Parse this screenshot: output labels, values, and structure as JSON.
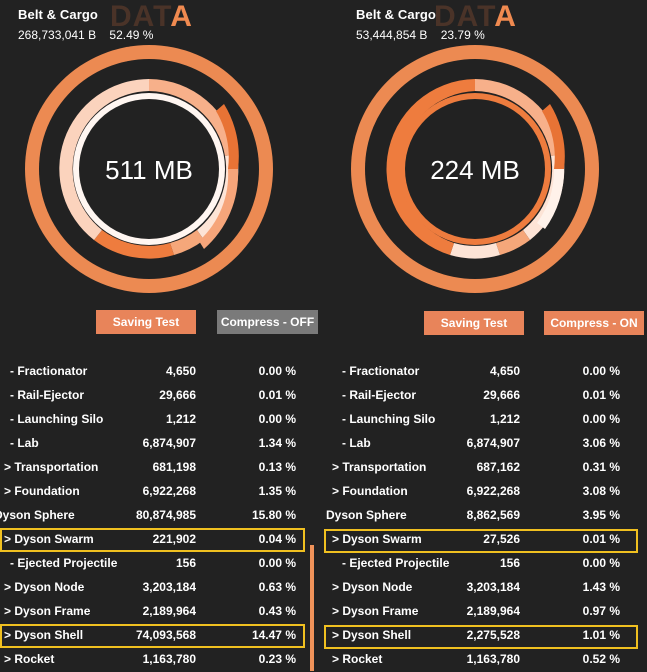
{
  "colors": {
    "accent": "#f0935a",
    "highlight": "#f0c020",
    "background": "#222222"
  },
  "left": {
    "title": "Belt & Cargo",
    "bytes": "268,733,041 B",
    "percent": "52.49 %",
    "watermark_main": "DAT",
    "watermark_accent": "A",
    "total": "511 MB",
    "save_label": "Saving Test",
    "compress_label": "Compress - OFF",
    "rows": [
      {
        "name": "- Fractionator",
        "value": "4,650",
        "pct": "0.00 %"
      },
      {
        "name": "- Rail-Ejector",
        "value": "29,666",
        "pct": "0.01 %"
      },
      {
        "name": "- Launching Silo",
        "value": "1,212",
        "pct": "0.00 %"
      },
      {
        "name": "- Lab",
        "value": "6,874,907",
        "pct": "1.34 %"
      },
      {
        "name": "> Transportation",
        "value": "681,198",
        "pct": "0.13 %"
      },
      {
        "name": "> Foundation",
        "value": "6,922,268",
        "pct": "1.35 %"
      },
      {
        "name": "Dyson Sphere",
        "value": "80,874,985",
        "pct": "15.80 %"
      },
      {
        "name": "> Dyson Swarm",
        "value": "221,902",
        "pct": "0.04 %"
      },
      {
        "name": "- Ejected Projectile",
        "value": "156",
        "pct": "0.00 %"
      },
      {
        "name": "> Dyson Node",
        "value": "3,203,184",
        "pct": "0.63 %"
      },
      {
        "name": "> Dyson Frame",
        "value": "2,189,964",
        "pct": "0.43 %"
      },
      {
        "name": "> Dyson Shell",
        "value": "74,093,568",
        "pct": "14.47 %"
      },
      {
        "name": "> Rocket",
        "value": "1,163,780",
        "pct": "0.23 %"
      }
    ]
  },
  "right": {
    "title": "Belt & Cargo",
    "bytes": "53,444,854 B",
    "percent": "23.79 %",
    "watermark_main": "DAT",
    "watermark_accent": "A",
    "total": "224 MB",
    "save_label": "Saving Test",
    "compress_label": "Compress - ON",
    "rows": [
      {
        "name": "- Fractionator",
        "value": "4,650",
        "pct": "0.00 %"
      },
      {
        "name": "- Rail-Ejector",
        "value": "29,666",
        "pct": "0.01 %"
      },
      {
        "name": "- Launching Silo",
        "value": "1,212",
        "pct": "0.00 %"
      },
      {
        "name": "- Lab",
        "value": "6,874,907",
        "pct": "3.06 %"
      },
      {
        "name": "> Transportation",
        "value": "687,162",
        "pct": "0.31 %"
      },
      {
        "name": "> Foundation",
        "value": "6,922,268",
        "pct": "3.08 %"
      },
      {
        "name": "Dyson Sphere",
        "value": "8,862,569",
        "pct": "3.95 %"
      },
      {
        "name": "> Dyson Swarm",
        "value": "27,526",
        "pct": "0.01 %"
      },
      {
        "name": "- Ejected Projectile",
        "value": "156",
        "pct": "0.00 %"
      },
      {
        "name": "> Dyson Node",
        "value": "3,203,184",
        "pct": "1.43 %"
      },
      {
        "name": "> Dyson Frame",
        "value": "2,189,964",
        "pct": "0.97 %"
      },
      {
        "name": "> Dyson Shell",
        "value": "2,275,528",
        "pct": "1.01 %"
      },
      {
        "name": "> Rocket",
        "value": "1,163,780",
        "pct": "0.52 %"
      }
    ]
  }
}
